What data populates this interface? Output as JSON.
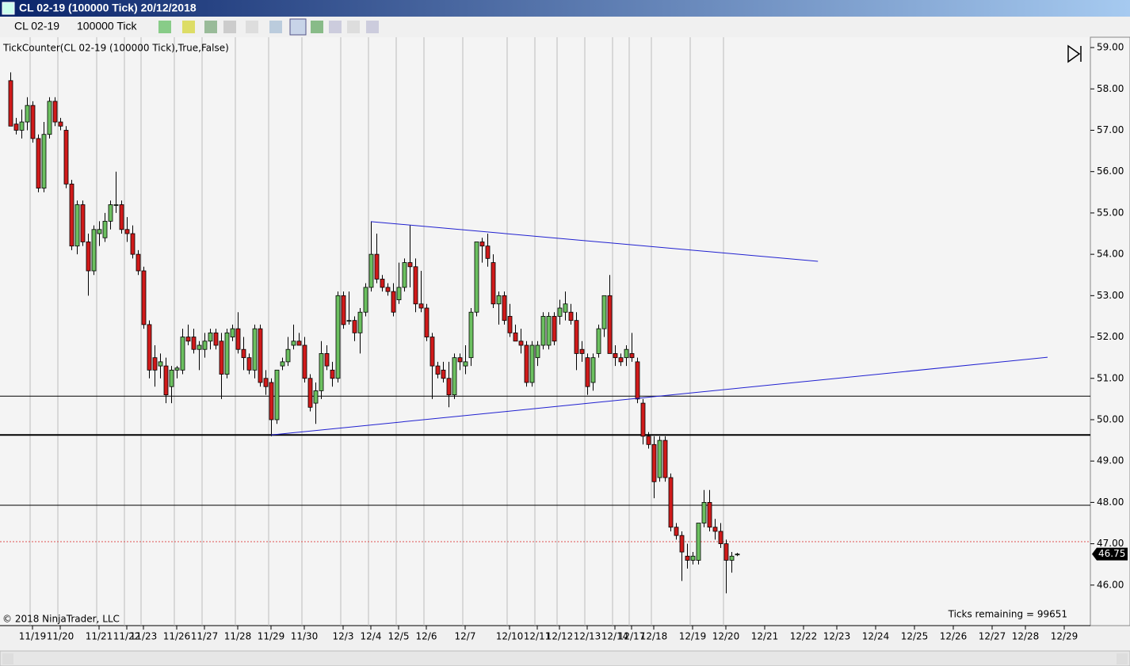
{
  "window_title": "CL 02-19 (100000 Tick)  20/12/2018",
  "toolbar": {
    "instrument": "CL 02-19",
    "interval": "100000 Tick"
  },
  "chart_data": {
    "type": "candlestick",
    "indicator_label": "TickCounter(CL 02-19  (100000  Tick),True,False)",
    "copyright": "© 2018 NinjaTrader, LLC",
    "ticks_remaining": "Ticks remaining = 99651",
    "up_color": "#6cc060",
    "down_color": "#d01a1a",
    "categories": [
      null,
      null,
      null,
      null,
      "11/19",
      null,
      null,
      null,
      null,
      "11/20",
      null,
      null,
      null,
      null,
      null,
      null,
      "11/21",
      null,
      null,
      null,
      null,
      "11/22",
      null,
      null,
      "11/23",
      null,
      null,
      null,
      null,
      null,
      "11/26",
      null,
      null,
      null,
      null,
      "11/27",
      null,
      null,
      null,
      null,
      null,
      "11/28",
      null,
      null,
      null,
      null,
      null,
      "11/29",
      null,
      null,
      null,
      null,
      null,
      "11/30",
      null,
      null,
      null,
      null,
      null,
      null,
      "12/3",
      null,
      null,
      null,
      null,
      "12/4",
      null,
      null,
      null,
      null,
      "12/5",
      null,
      null,
      null,
      null,
      "12/6",
      null,
      null,
      null,
      null,
      null,
      null,
      "12/7",
      null,
      null,
      null,
      null,
      null,
      null,
      null,
      "12/10",
      null,
      null,
      null,
      null,
      "12/11",
      null,
      null,
      null,
      "12/12",
      null,
      null,
      null,
      null,
      "12/13",
      null,
      null,
      null,
      null,
      "12/14",
      null,
      null,
      "12/17",
      null,
      null,
      null,
      "12/18",
      null,
      null,
      null,
      null,
      null,
      null,
      "12/19",
      null,
      null,
      null,
      null,
      null,
      "12/20",
      null,
      null,
      null,
      null,
      null,
      null,
      "12/21",
      null,
      null,
      null,
      null,
      null,
      null,
      "12/22",
      null,
      null,
      null,
      null,
      null,
      "12/23",
      null,
      null,
      null,
      null,
      null,
      null,
      "12/24",
      null,
      null,
      null,
      null,
      null,
      null,
      "12/25",
      null,
      null,
      null,
      null,
      null,
      null,
      "12/26",
      null,
      null,
      null,
      null,
      null,
      null,
      "12/27",
      null,
      null,
      null,
      null,
      null,
      "12/28",
      null,
      null,
      null,
      null,
      null,
      null,
      "12/29"
    ],
    "candles": [
      [
        58.2,
        58.4,
        57.1,
        57.1
      ],
      [
        57.15,
        57.3,
        56.9,
        57.0
      ],
      [
        57.0,
        57.5,
        56.8,
        57.2
      ],
      [
        57.2,
        57.8,
        57.0,
        57.6
      ],
      [
        57.6,
        57.7,
        56.7,
        56.8
      ],
      [
        56.8,
        56.9,
        55.5,
        55.6
      ],
      [
        55.6,
        57.2,
        55.5,
        56.9
      ],
      [
        56.9,
        57.8,
        56.8,
        57.7
      ],
      [
        57.7,
        57.8,
        57.1,
        57.2
      ],
      [
        57.2,
        57.3,
        57.0,
        57.1
      ],
      [
        57.0,
        57.1,
        55.6,
        55.7
      ],
      [
        55.7,
        55.8,
        54.1,
        54.2
      ],
      [
        54.2,
        55.3,
        54.0,
        55.2
      ],
      [
        55.2,
        55.3,
        54.2,
        54.3
      ],
      [
        54.3,
        54.5,
        53.0,
        53.6
      ],
      [
        53.6,
        54.7,
        53.5,
        54.6
      ],
      [
        54.5,
        54.8,
        54.2,
        54.6
      ],
      [
        54.4,
        55.0,
        54.3,
        54.8
      ],
      [
        54.8,
        55.3,
        54.6,
        55.2
      ],
      [
        55.2,
        56.0,
        55.0,
        55.2
      ],
      [
        55.2,
        55.3,
        54.5,
        54.6
      ],
      [
        54.6,
        54.9,
        54.3,
        54.5
      ],
      [
        54.5,
        54.7,
        53.9,
        54.0
      ],
      [
        54.0,
        54.1,
        53.5,
        53.6
      ],
      [
        53.6,
        53.7,
        52.2,
        52.3
      ],
      [
        52.3,
        52.4,
        51.0,
        51.2
      ],
      [
        51.5,
        51.8,
        50.8,
        51.2
      ],
      [
        51.3,
        51.6,
        51.0,
        51.4
      ],
      [
        51.3,
        51.5,
        50.4,
        50.6
      ],
      [
        50.8,
        51.3,
        50.4,
        51.2
      ],
      [
        51.2,
        51.3,
        51.0,
        51.25
      ],
      [
        51.2,
        52.2,
        51.1,
        52.0
      ],
      [
        52.0,
        52.3,
        51.8,
        51.9
      ],
      [
        52.0,
        52.2,
        51.6,
        51.7
      ],
      [
        51.7,
        51.9,
        51.2,
        51.8
      ],
      [
        51.7,
        52.1,
        51.5,
        51.9
      ],
      [
        51.9,
        52.2,
        51.7,
        52.1
      ],
      [
        52.1,
        52.2,
        51.7,
        51.8
      ],
      [
        51.9,
        52.1,
        50.5,
        51.1
      ],
      [
        51.1,
        52.2,
        51.0,
        52.1
      ],
      [
        52.0,
        52.3,
        51.9,
        52.2
      ],
      [
        52.2,
        52.6,
        51.6,
        51.7
      ],
      [
        51.7,
        52.0,
        51.2,
        51.5
      ],
      [
        51.5,
        51.6,
        51.1,
        51.2
      ],
      [
        51.2,
        52.3,
        51.0,
        52.2
      ],
      [
        52.2,
        52.3,
        50.8,
        50.9
      ],
      [
        51.0,
        51.2,
        50.6,
        50.8
      ],
      [
        50.9,
        51.0,
        49.6,
        50.0
      ],
      [
        50.0,
        51.2,
        49.9,
        51.2
      ],
      [
        51.3,
        51.5,
        51.2,
        51.4
      ],
      [
        51.4,
        52.0,
        51.3,
        51.7
      ],
      [
        51.8,
        52.3,
        51.7,
        51.9
      ],
      [
        51.9,
        52.1,
        51.8,
        51.8
      ],
      [
        51.8,
        52.0,
        50.9,
        51.0
      ],
      [
        51.0,
        51.1,
        50.2,
        50.3
      ],
      [
        50.4,
        50.9,
        49.9,
        50.7
      ],
      [
        50.7,
        51.9,
        50.5,
        51.6
      ],
      [
        51.6,
        51.8,
        51.2,
        51.3
      ],
      [
        51.2,
        51.4,
        50.8,
        51.0
      ],
      [
        51.0,
        53.1,
        50.9,
        53.0
      ],
      [
        53.0,
        53.1,
        52.2,
        52.3
      ],
      [
        52.4,
        53.1,
        52.3,
        52.4
      ],
      [
        52.4,
        52.5,
        51.9,
        52.1
      ],
      [
        52.1,
        52.7,
        51.6,
        52.6
      ],
      [
        52.6,
        53.3,
        52.5,
        53.2
      ],
      [
        53.2,
        54.8,
        53.1,
        54.0
      ],
      [
        54.0,
        54.5,
        53.3,
        53.4
      ],
      [
        53.4,
        53.5,
        53.1,
        53.2
      ],
      [
        53.2,
        53.3,
        53.0,
        53.1
      ],
      [
        53.1,
        53.3,
        52.5,
        52.6
      ],
      [
        52.9,
        53.8,
        52.8,
        53.2
      ],
      [
        53.2,
        53.9,
        53.1,
        53.8
      ],
      [
        53.8,
        54.7,
        53.2,
        53.7
      ],
      [
        53.7,
        53.9,
        52.6,
        52.8
      ],
      [
        52.8,
        53.6,
        52.6,
        52.7
      ],
      [
        52.7,
        52.8,
        51.9,
        52.0
      ],
      [
        52.0,
        52.1,
        50.5,
        51.3
      ],
      [
        51.3,
        51.4,
        51.0,
        51.1
      ],
      [
        51.2,
        51.4,
        50.9,
        51.0
      ],
      [
        51.0,
        51.4,
        50.3,
        50.6
      ],
      [
        50.6,
        51.6,
        50.5,
        51.5
      ],
      [
        51.5,
        51.6,
        51.2,
        51.4
      ],
      [
        51.3,
        51.8,
        51.1,
        51.4
      ],
      [
        51.5,
        52.7,
        51.3,
        52.6
      ],
      [
        52.6,
        54.3,
        52.5,
        54.3
      ],
      [
        54.3,
        54.4,
        53.8,
        54.2
      ],
      [
        54.2,
        54.5,
        53.7,
        53.9
      ],
      [
        53.8,
        54.0,
        52.7,
        52.8
      ],
      [
        52.8,
        53.1,
        52.3,
        53.0
      ],
      [
        53.0,
        53.1,
        52.3,
        52.4
      ],
      [
        52.5,
        52.8,
        52.0,
        52.1
      ],
      [
        52.1,
        52.3,
        51.9,
        51.9
      ],
      [
        51.9,
        52.2,
        51.6,
        51.8
      ],
      [
        51.8,
        51.9,
        50.8,
        50.9
      ],
      [
        50.9,
        51.9,
        50.8,
        51.8
      ],
      [
        51.5,
        51.9,
        51.3,
        51.8
      ],
      [
        51.8,
        52.6,
        51.7,
        52.5
      ],
      [
        51.8,
        52.6,
        51.7,
        52.5
      ],
      [
        52.5,
        52.6,
        51.8,
        51.9
      ],
      [
        52.5,
        52.9,
        52.3,
        52.7
      ],
      [
        52.6,
        53.1,
        52.4,
        52.8
      ],
      [
        52.6,
        52.8,
        52.3,
        52.4
      ],
      [
        52.4,
        52.6,
        51.2,
        51.6
      ],
      [
        51.7,
        51.9,
        51.4,
        51.6
      ],
      [
        51.5,
        51.6,
        50.6,
        50.8
      ],
      [
        50.9,
        51.6,
        50.7,
        51.5
      ],
      [
        51.6,
        52.3,
        51.5,
        52.2
      ],
      [
        52.2,
        53.0,
        52.0,
        53.0
      ],
      [
        53.0,
        53.5,
        51.6,
        51.6
      ],
      [
        51.6,
        51.8,
        51.3,
        51.5
      ],
      [
        51.5,
        51.6,
        51.3,
        51.4
      ],
      [
        51.5,
        51.8,
        51.3,
        51.7
      ],
      [
        51.6,
        52.1,
        51.4,
        51.5
      ],
      [
        51.4,
        51.5,
        50.4,
        50.5
      ],
      [
        50.4,
        50.5,
        49.4,
        49.6
      ],
      [
        49.6,
        49.7,
        49.3,
        49.4
      ],
      [
        49.4,
        49.6,
        48.1,
        48.5
      ],
      [
        48.6,
        49.6,
        48.5,
        49.5
      ],
      [
        49.5,
        49.6,
        48.5,
        48.6
      ],
      [
        48.6,
        48.7,
        47.3,
        47.4
      ],
      [
        47.4,
        47.5,
        47.1,
        47.2
      ],
      [
        47.2,
        47.3,
        46.1,
        46.8
      ],
      [
        46.7,
        47.0,
        46.4,
        46.6
      ],
      [
        46.6,
        46.8,
        46.5,
        46.7
      ],
      [
        46.6,
        47.5,
        46.5,
        47.5
      ],
      [
        47.5,
        48.3,
        47.4,
        48.0
      ],
      [
        48.0,
        48.3,
        47.3,
        47.4
      ],
      [
        47.4,
        47.6,
        47.1,
        47.3
      ],
      [
        47.3,
        47.5,
        46.9,
        47.0
      ],
      [
        47.0,
        47.1,
        45.8,
        46.6
      ],
      [
        46.6,
        46.8,
        46.3,
        46.7
      ],
      [
        46.73,
        46.78,
        46.7,
        46.75
      ],
      null,
      null,
      null,
      null,
      null,
      null,
      null,
      null,
      null,
      null,
      null,
      null,
      null,
      null,
      null,
      null,
      null,
      null,
      null,
      null,
      null,
      null,
      null,
      null,
      null,
      null,
      null,
      null,
      null,
      null,
      null,
      null,
      null,
      null,
      null,
      null,
      null,
      null,
      null,
      null,
      null,
      null,
      null,
      null,
      null,
      null,
      null,
      null,
      null,
      null,
      null,
      null,
      null,
      null,
      null,
      null,
      null,
      null,
      null
    ],
    "horizontal_lines": [
      50.57,
      49.63,
      47.93
    ],
    "horizontal_line_widths": [
      1,
      2,
      1
    ],
    "reference_line": 47.05,
    "trend_lines": [
      {
        "x": [
          65,
          145.6
        ],
        "y": [
          54.79,
          53.83
        ]
      },
      {
        "x": [
          47,
          187
        ],
        "y": [
          49.63,
          51.51
        ]
      }
    ],
    "ylim": [
      45.02,
      59.25
    ],
    "yticks": [
      {
        "value": 46,
        "label": "46.00"
      },
      {
        "value": 47,
        "label": "47.00"
      },
      {
        "value": 48,
        "label": "48.00"
      },
      {
        "value": 49,
        "label": "49.00"
      },
      {
        "value": 50,
        "label": "50.00"
      },
      {
        "value": 51,
        "label": "51.00"
      },
      {
        "value": 52,
        "label": "52.00"
      },
      {
        "value": 53,
        "label": "53.00"
      },
      {
        "value": 54,
        "label": "54.00"
      },
      {
        "value": 55,
        "label": "55.00"
      },
      {
        "value": 56,
        "label": "56.00"
      },
      {
        "value": 57,
        "label": "57.00"
      },
      {
        "value": 58,
        "label": "58.00"
      },
      {
        "value": 59,
        "label": "59.00"
      }
    ]
  }
}
